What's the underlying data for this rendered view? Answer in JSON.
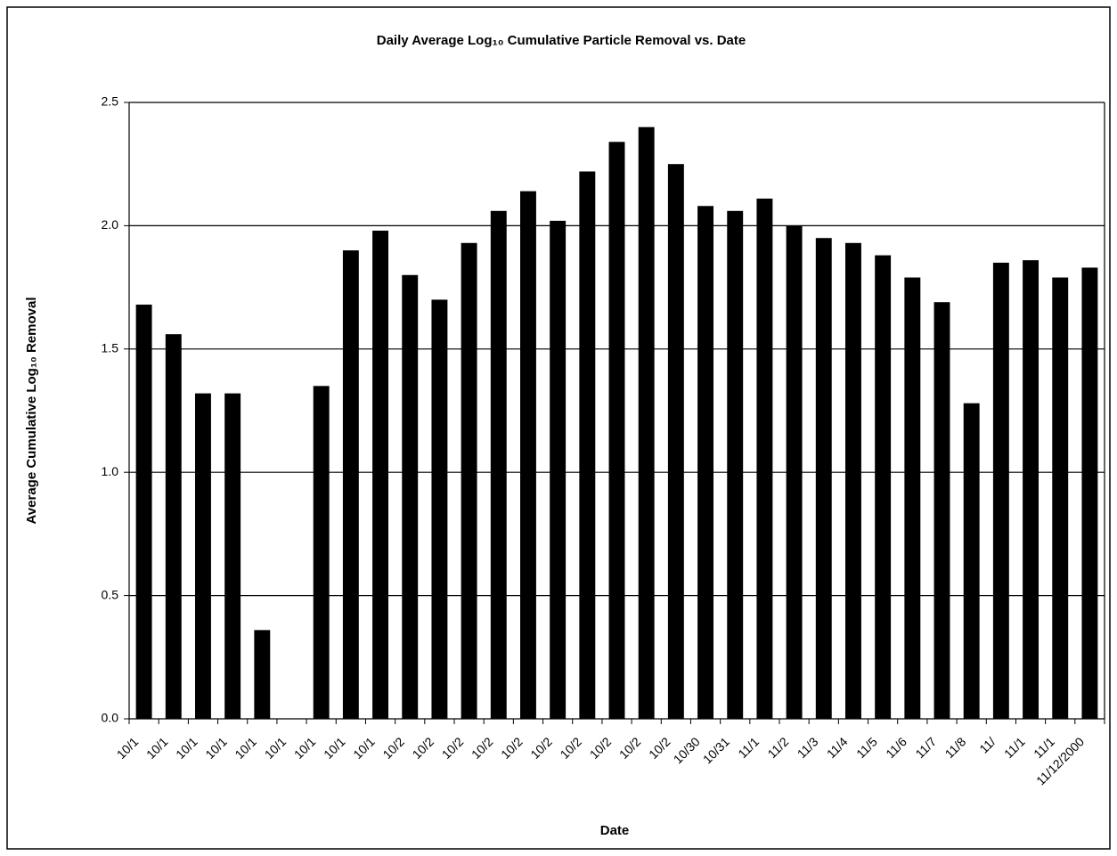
{
  "chart_data": {
    "type": "bar",
    "title": "Daily Average Log₁₀ Cumulative Particle Removal vs. Date",
    "x_label": "Date",
    "y_label": "Average Cumulative Log₁₀ Removal",
    "categories": [
      "10/1",
      "10/1",
      "10/1",
      "10/1",
      "10/1",
      "10/1",
      "10/1",
      "10/1",
      "10/1",
      "10/2",
      "10/2",
      "10/2",
      "10/2",
      "10/2",
      "10/2",
      "10/2",
      "10/2",
      "10/2",
      "10/2",
      "10/30",
      "10/31",
      "11/1",
      "11/2",
      "11/3",
      "11/4",
      "11/5",
      "11/6",
      "11/7",
      "11/8",
      "11/",
      "11/1",
      "11/1",
      "11/12/2000"
    ],
    "values": [
      1.68,
      1.56,
      1.32,
      1.32,
      0.36,
      null,
      1.35,
      1.9,
      1.98,
      1.8,
      1.7,
      1.93,
      2.06,
      2.14,
      2.02,
      2.22,
      2.34,
      2.4,
      2.25,
      2.08,
      2.06,
      2.11,
      2.0,
      1.95,
      1.93,
      1.88,
      1.79,
      1.69,
      1.28,
      1.85,
      1.86,
      1.79,
      1.83
    ],
    "color": "#000000",
    "ylim": [
      0,
      2.5
    ],
    "yticks": [
      {
        "value": 0,
        "label": "0.0"
      },
      0.5,
      {
        "value": 1,
        "label": "1.0"
      },
      1.5,
      {
        "value": 2,
        "label": "2.0"
      },
      2.5
    ],
    "grid": true
  }
}
